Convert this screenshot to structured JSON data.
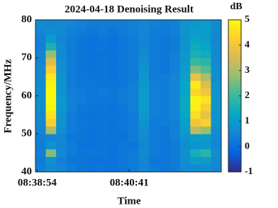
{
  "chart_data": {
    "type": "heatmap",
    "title": "2024-04-18 Denoising Result",
    "xlabel": "Time",
    "ylabel": "Frequency/MHz",
    "colorbar_label": "dB",
    "colormap": "parula",
    "x": [
      "08:38:58",
      "08:39:10",
      "08:39:22",
      "08:39:34",
      "08:39:46",
      "08:39:58",
      "08:40:10",
      "08:40:22",
      "08:40:34",
      "08:40:46",
      "08:40:58",
      "08:41:10",
      "08:41:22",
      "08:41:34",
      "08:41:46",
      "08:41:58",
      "08:42:10",
      "08:42:22"
    ],
    "y": [
      41,
      43,
      45,
      47,
      49,
      51,
      53,
      55,
      57,
      59,
      61,
      63,
      65,
      67,
      69,
      71,
      73,
      75,
      77,
      79
    ],
    "z": [
      [
        0.4,
        0.6,
        0.5,
        0.3,
        0.2,
        0.1,
        0.2,
        0.1,
        0.2,
        0.3,
        0.5,
        0.3,
        0.2,
        0.3,
        0.6,
        0.6,
        0.7,
        0.5
      ],
      [
        0.3,
        0.8,
        0.4,
        0.2,
        0.2,
        0.1,
        0.1,
        0.1,
        0.2,
        0.3,
        0.5,
        0.2,
        0.2,
        0.3,
        0.7,
        1.0,
        1.0,
        0.6
      ],
      [
        0.4,
        2.6,
        0.6,
        0.3,
        0.2,
        0.2,
        0.2,
        0.1,
        0.2,
        0.3,
        0.6,
        0.3,
        0.2,
        0.3,
        0.8,
        1.5,
        1.8,
        0.7
      ],
      [
        0.3,
        0.8,
        0.5,
        0.3,
        0.1,
        0.1,
        0.2,
        0.1,
        0.2,
        0.2,
        0.5,
        0.3,
        0.2,
        0.3,
        0.7,
        0.8,
        0.9,
        0.5
      ],
      [
        0.4,
        0.5,
        0.5,
        0.2,
        0.2,
        0.1,
        0.2,
        0.2,
        0.1,
        0.3,
        0.6,
        0.3,
        0.2,
        0.4,
        0.8,
        1.0,
        1.0,
        0.6
      ],
      [
        0.5,
        3.0,
        0.7,
        0.3,
        0.2,
        0.1,
        0.2,
        0.1,
        0.2,
        0.3,
        0.7,
        0.3,
        0.2,
        0.4,
        1.0,
        3.2,
        2.8,
        0.7
      ],
      [
        0.6,
        4.2,
        0.8,
        0.3,
        0.2,
        0.2,
        0.2,
        0.1,
        0.2,
        0.3,
        0.8,
        0.3,
        0.3,
        0.4,
        1.1,
        4.0,
        4.3,
        0.8
      ],
      [
        0.6,
        4.6,
        0.8,
        0.3,
        0.2,
        0.1,
        0.2,
        0.2,
        0.2,
        0.3,
        0.9,
        0.4,
        0.3,
        0.5,
        1.2,
        4.5,
        3.8,
        0.8
      ],
      [
        0.7,
        4.9,
        0.9,
        0.4,
        0.2,
        0.2,
        0.2,
        0.1,
        0.2,
        0.4,
        1.0,
        0.4,
        0.3,
        0.5,
        1.3,
        4.8,
        4.2,
        0.9
      ],
      [
        0.7,
        5.0,
        0.9,
        0.4,
        0.3,
        0.2,
        0.2,
        0.2,
        0.3,
        0.4,
        1.0,
        0.4,
        0.3,
        0.5,
        1.3,
        4.9,
        4.6,
        0.9
      ],
      [
        0.7,
        5.0,
        0.8,
        0.4,
        0.3,
        0.2,
        0.3,
        0.2,
        0.3,
        0.4,
        1.0,
        0.4,
        0.3,
        0.5,
        1.2,
        4.4,
        4.0,
        0.8
      ],
      [
        0.6,
        4.9,
        0.8,
        0.3,
        0.2,
        0.2,
        0.2,
        0.2,
        0.2,
        0.4,
        0.9,
        0.4,
        0.3,
        0.5,
        1.2,
        4.7,
        3.6,
        0.8
      ],
      [
        0.6,
        4.7,
        0.8,
        0.3,
        0.2,
        0.2,
        0.2,
        0.1,
        0.2,
        0.3,
        0.9,
        0.3,
        0.3,
        0.5,
        1.1,
        3.8,
        3.0,
        0.7
      ],
      [
        0.6,
        4.2,
        0.7,
        0.3,
        0.2,
        0.1,
        0.2,
        0.1,
        0.2,
        0.3,
        0.8,
        0.3,
        0.2,
        0.4,
        1.0,
        2.6,
        2.2,
        0.7
      ],
      [
        0.5,
        3.6,
        0.7,
        0.3,
        0.2,
        0.1,
        0.2,
        0.1,
        0.2,
        0.3,
        0.7,
        0.3,
        0.2,
        0.4,
        0.9,
        2.0,
        1.8,
        0.6
      ],
      [
        0.5,
        2.8,
        0.6,
        0.3,
        0.2,
        0.1,
        0.1,
        0.1,
        0.2,
        0.3,
        0.6,
        0.3,
        0.2,
        0.4,
        0.9,
        1.6,
        1.4,
        0.6
      ],
      [
        0.4,
        1.6,
        0.6,
        0.3,
        0.2,
        0.1,
        0.2,
        0.1,
        0.2,
        0.3,
        0.5,
        0.3,
        0.2,
        0.3,
        0.8,
        1.4,
        1.2,
        0.6
      ],
      [
        0.4,
        1.0,
        0.5,
        0.3,
        0.2,
        0.1,
        0.2,
        0.1,
        0.2,
        0.3,
        0.5,
        0.3,
        0.2,
        0.3,
        0.8,
        1.2,
        1.0,
        0.5
      ],
      [
        0.5,
        0.7,
        0.6,
        0.4,
        0.3,
        0.2,
        0.3,
        0.2,
        0.3,
        0.4,
        0.5,
        0.3,
        0.3,
        0.4,
        0.8,
        1.0,
        1.0,
        0.6
      ],
      [
        0.6,
        0.5,
        0.6,
        0.5,
        0.4,
        0.3,
        0.3,
        0.3,
        0.3,
        0.4,
        0.5,
        0.4,
        0.3,
        0.4,
        0.8,
        0.9,
        1.0,
        0.6
      ]
    ],
    "xlim": [
      "08:38:52",
      "08:42:28"
    ],
    "xticks": [
      "08:38:54",
      "08:40:41"
    ],
    "ylim": [
      40,
      80
    ],
    "yticks": [
      40,
      50,
      60,
      70,
      80
    ],
    "clim": [
      -1,
      5
    ],
    "cticks": [
      -1,
      0,
      1,
      2,
      3,
      4,
      5
    ]
  }
}
